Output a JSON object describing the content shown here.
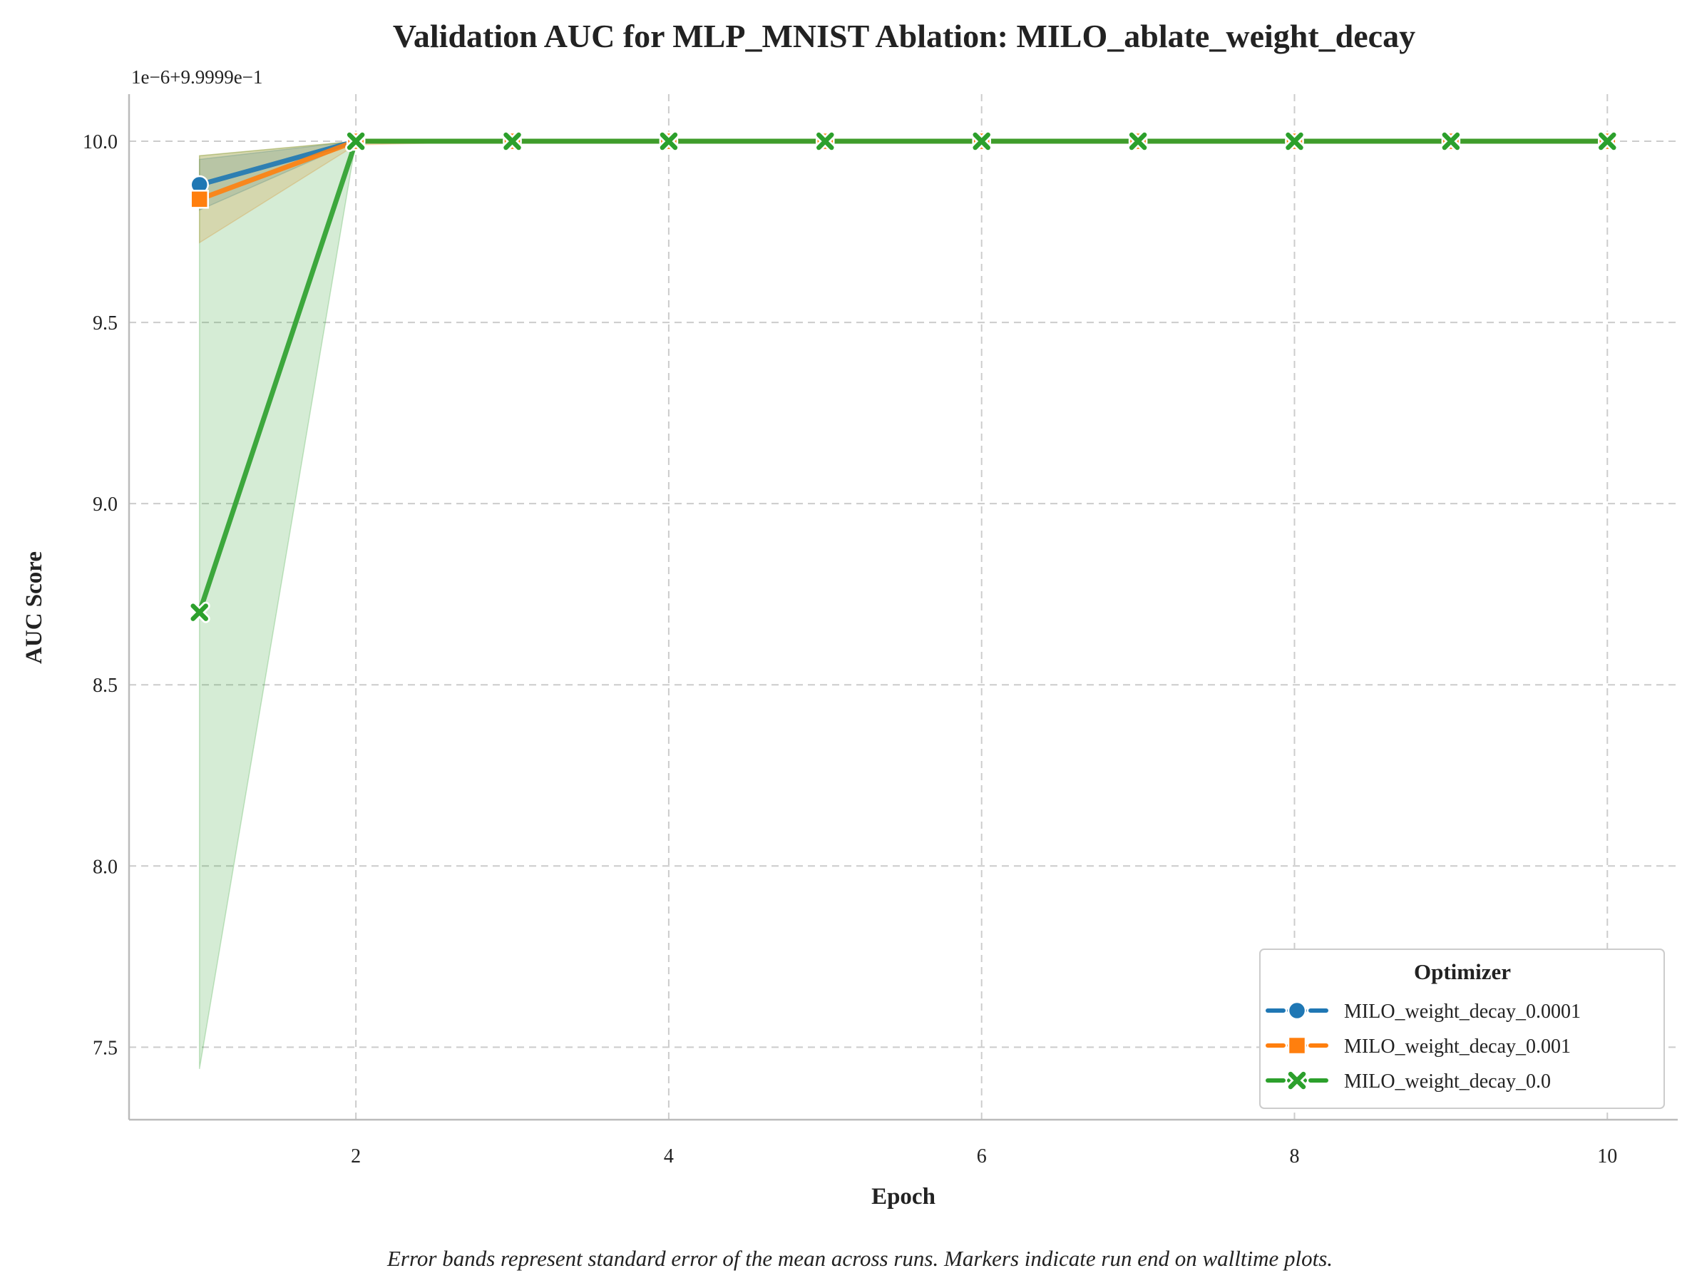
{
  "chart_data": {
    "type": "line",
    "title": "Validation AUC for MLP_MNIST Ablation: MILO_ablate_weight_decay",
    "xlabel": "Epoch",
    "ylabel": "AUC Score",
    "y_offset_label": "1e−6+9.9999e−1",
    "caption": "Error bands represent standard error of the mean across runs. Markers indicate run end on walltime plots.",
    "xlim": [
      0.55,
      10.45
    ],
    "ylim": [
      7.3,
      10.13
    ],
    "x_ticks": [
      2,
      4,
      6,
      8,
      10
    ],
    "x_tick_labels": [
      "2",
      "4",
      "6",
      "8",
      "10"
    ],
    "y_ticks": [
      7.5,
      8.0,
      8.5,
      9.0,
      9.5,
      10.0
    ],
    "y_tick_labels": [
      "7.5",
      "8.0",
      "8.5",
      "9.0",
      "9.5",
      "10.0"
    ],
    "grid": true,
    "legend": {
      "title": "Optimizer",
      "position": "bottom-right"
    },
    "x": [
      1,
      2,
      3,
      4,
      5,
      6,
      7,
      8,
      9,
      10
    ],
    "series": [
      {
        "name": "MILO_weight_decay_0.0001",
        "color": "#1f77b4",
        "marker": "circle",
        "values": [
          9.88,
          10.0,
          10.0,
          10.0,
          10.0,
          10.0,
          10.0,
          10.0,
          10.0,
          10.0
        ],
        "band_low": [
          9.81,
          10.0,
          10.0,
          10.0,
          10.0,
          10.0,
          10.0,
          10.0,
          10.0,
          10.0
        ],
        "band_high": [
          9.95,
          10.0,
          10.0,
          10.0,
          10.0,
          10.0,
          10.0,
          10.0,
          10.0,
          10.0
        ]
      },
      {
        "name": "MILO_weight_decay_0.001",
        "color": "#ff7f0e",
        "marker": "square",
        "values": [
          9.84,
          10.0,
          10.0,
          10.0,
          10.0,
          10.0,
          10.0,
          10.0,
          10.0,
          10.0
        ],
        "band_low": [
          9.72,
          9.99,
          10.0,
          10.0,
          10.0,
          10.0,
          10.0,
          10.0,
          10.0,
          10.0
        ],
        "band_high": [
          9.96,
          10.0,
          10.0,
          10.0,
          10.0,
          10.0,
          10.0,
          10.0,
          10.0,
          10.0
        ]
      },
      {
        "name": "MILO_weight_decay_0.0",
        "color": "#2ca02c",
        "marker": "x",
        "values": [
          8.7,
          10.0,
          10.0,
          10.0,
          10.0,
          10.0,
          10.0,
          10.0,
          10.0,
          10.0
        ],
        "band_low": [
          7.44,
          10.0,
          10.0,
          10.0,
          10.0,
          10.0,
          10.0,
          10.0,
          10.0,
          10.0
        ],
        "band_high": [
          9.96,
          10.0,
          10.0,
          10.0,
          10.0,
          10.0,
          10.0,
          10.0,
          10.0,
          10.0
        ]
      }
    ]
  }
}
